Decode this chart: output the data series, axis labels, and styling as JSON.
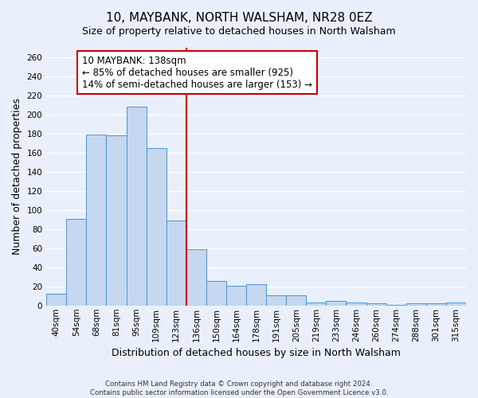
{
  "title": "10, MAYBANK, NORTH WALSHAM, NR28 0EZ",
  "subtitle": "Size of property relative to detached houses in North Walsham",
  "xlabel": "Distribution of detached houses by size in North Walsham",
  "ylabel": "Number of detached properties",
  "categories": [
    "40sqm",
    "54sqm",
    "68sqm",
    "81sqm",
    "95sqm",
    "109sqm",
    "123sqm",
    "136sqm",
    "150sqm",
    "164sqm",
    "178sqm",
    "191sqm",
    "205sqm",
    "219sqm",
    "233sqm",
    "246sqm",
    "260sqm",
    "274sqm",
    "288sqm",
    "301sqm",
    "315sqm"
  ],
  "values": [
    12,
    91,
    179,
    178,
    208,
    165,
    89,
    59,
    26,
    21,
    22,
    11,
    11,
    3,
    5,
    3,
    2,
    1,
    2,
    2,
    3
  ],
  "bar_color": "#c5d8f0",
  "bar_edge_color": "#5b9bd5",
  "vline_x_index": 7,
  "vline_color": "#cc0000",
  "annotation_text": "10 MAYBANK: 138sqm\n← 85% of detached houses are smaller (925)\n14% of semi-detached houses are larger (153) →",
  "annotation_box_color": "#ffffff",
  "annotation_box_edge": "#cc0000",
  "ylim": [
    0,
    270
  ],
  "yticks": [
    0,
    20,
    40,
    60,
    80,
    100,
    120,
    140,
    160,
    180,
    200,
    220,
    240,
    260
  ],
  "background_color": "#eaf0fb",
  "grid_color": "#ffffff",
  "title_fontsize": 11,
  "xlabel_fontsize": 9,
  "ylabel_fontsize": 9,
  "tick_fontsize": 7.5,
  "annotation_fontsize": 8.5,
  "footer_line1": "Contains HM Land Registry data © Crown copyright and database right 2024.",
  "footer_line2": "Contains public sector information licensed under the Open Government Licence v3.0."
}
